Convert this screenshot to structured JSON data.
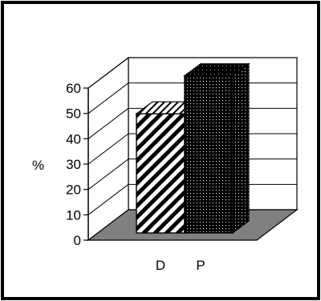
{
  "chart_data": {
    "type": "bar",
    "style": "3d-column",
    "categories": [
      "D",
      "P"
    ],
    "values": [
      47,
      62
    ],
    "ylabel": "%",
    "ylim": [
      0,
      60
    ],
    "yticks": [
      "0",
      "10",
      "20",
      "30",
      "40",
      "50",
      "60"
    ],
    "grid": true,
    "legend": "none",
    "colors": {
      "floor": "#808080",
      "bar_fill": "#000000",
      "background": "#ffffff"
    }
  }
}
